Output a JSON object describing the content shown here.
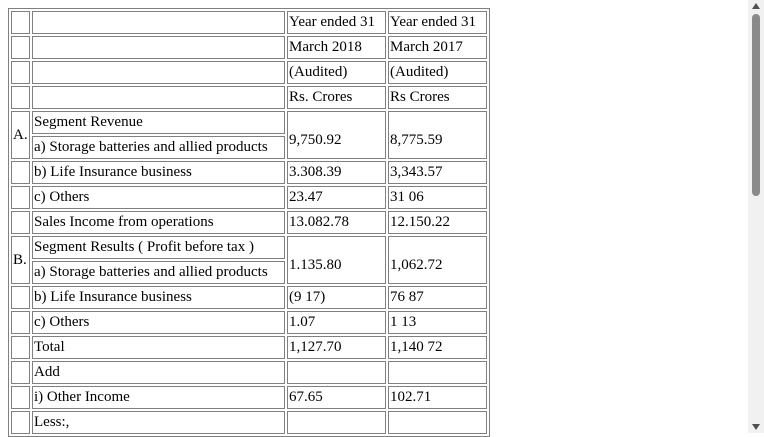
{
  "header": [
    [
      "",
      "",
      "Year ended 31",
      "Year ended 31"
    ],
    [
      "",
      "",
      "March 2018",
      "March 2017"
    ],
    [
      "",
      "",
      "(Audited)",
      "(Audited)"
    ],
    [
      "",
      "",
      "Rs. Crores",
      "Rs Crores"
    ]
  ],
  "section_a": {
    "marker": "A.",
    "title": "Segment Revenue",
    "rows": [
      [
        "a) Storage batteries and allied products",
        "9,750.92",
        "8,775.59"
      ],
      [
        "b) Life Insurance business",
        "3.308.39",
        "3,343.57"
      ],
      [
        "c) Others",
        "23.47",
        "31 06"
      ],
      [
        "Sales Income from operations",
        "13.082.78",
        "12.150.22"
      ]
    ]
  },
  "section_b": {
    "marker": "B.",
    "title": "Segment Results ( Profit before tax )",
    "rows": [
      [
        "a) Storage batteries and allied products",
        "1.135.80",
        "1,062.72"
      ],
      [
        "b) Life Insurance business",
        "(9 17)",
        "76 87"
      ],
      [
        "c) Others",
        "1.07",
        "1 13"
      ],
      [
        "Total",
        "1,127.70",
        "1,140 72"
      ],
      [
        "Add",
        "",
        ""
      ],
      [
        "i) Other Income",
        "67.65",
        "102.71"
      ],
      [
        "Less:,",
        "",
        ""
      ]
    ]
  }
}
